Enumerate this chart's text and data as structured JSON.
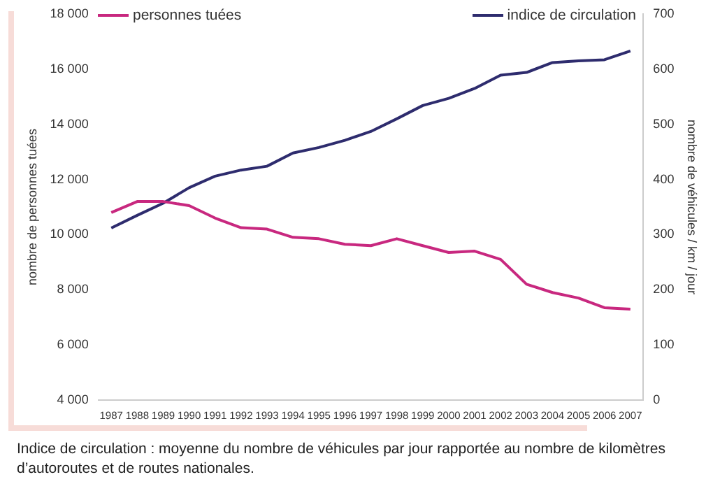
{
  "chart_data": {
    "type": "line",
    "categories": [
      "1987",
      "1988",
      "1989",
      "1990",
      "1991",
      "1992",
      "1993",
      "1994",
      "1995",
      "1996",
      "1997",
      "1998",
      "1999",
      "2000",
      "2001",
      "2002",
      "2003",
      "2004",
      "2005",
      "2006",
      "2007"
    ],
    "series": [
      {
        "name": "personnes tuées",
        "color": "#c8287f",
        "values": [
          10800,
          11200,
          11200,
          11050,
          10600,
          10250,
          10200,
          9900,
          9850,
          9650,
          9600,
          9850,
          9600,
          9350,
          9400,
          9100,
          8200,
          7900,
          7700,
          7350,
          7300
        ]
      },
      {
        "name": "indice de circulation",
        "color": "#2e2c6e",
        "axis": "y2",
        "values": [
          312,
          335,
          357,
          385,
          406,
          417,
          424,
          448,
          458,
          471,
          487,
          510,
          534,
          547,
          565,
          589,
          594,
          612,
          615,
          617,
          633
        ]
      }
    ],
    "ylabel": "nombre de personnes tuées",
    "y2label": "nombre de véhicules / km / jour",
    "ylim": [
      4000,
      18000
    ],
    "yticks": [
      {
        "value": 4000,
        "label": "4 000"
      },
      {
        "value": 6000,
        "label": "6 000"
      },
      {
        "value": 8000,
        "label": "8 000"
      },
      {
        "value": 10000,
        "label": "10 000"
      },
      {
        "value": 12000,
        "label": "12 000"
      },
      {
        "value": 14000,
        "label": "14 000"
      },
      {
        "value": 16000,
        "label": "16 000"
      },
      {
        "value": 18000,
        "label": "18 000"
      }
    ],
    "y2lim": [
      0,
      700
    ],
    "y2ticks": [
      0,
      100,
      200,
      300,
      400,
      500,
      600,
      700
    ],
    "grid": false,
    "legend": "top",
    "marker": "none",
    "annotations": [
      "Indice de circulation : moyenne du nombre de véhicules par jour rapportée au nombre de kilomètres d’autoroutes et de routes nationales."
    ]
  }
}
